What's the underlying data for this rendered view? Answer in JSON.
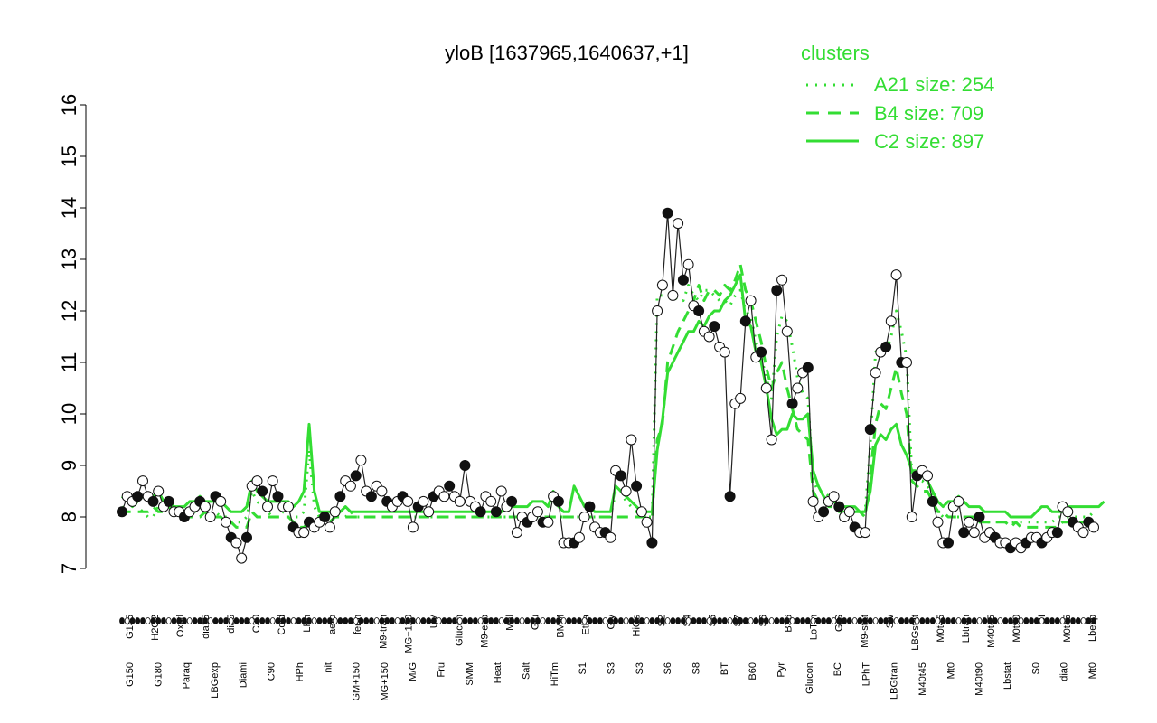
{
  "chart_data": {
    "type": "line",
    "title": "yloB [1637965,1640637,+1]",
    "xlabel": "",
    "ylabel": "",
    "ylim": [
      7,
      16
    ],
    "yticks": [
      7,
      8,
      9,
      10,
      11,
      12,
      13,
      14,
      15,
      16
    ],
    "grid": false,
    "legend_position": "top-right",
    "legend": {
      "title": "clusters",
      "color": "#33dd33",
      "entries": [
        {
          "label": "A21 size: 254",
          "style": "dotted"
        },
        {
          "label": "B4 size: 709",
          "style": "dashed"
        },
        {
          "label": "C2 size: 897",
          "style": "solid"
        }
      ]
    },
    "x_labels_top": [
      "G135",
      "H2O2",
      "Oxctl",
      "dia15",
      "dia5",
      "C30",
      "Cold",
      "LPh",
      "aero",
      "ferm",
      "M9-tran",
      "MG+120",
      "UV",
      "Glucon",
      "M9-exp",
      "Mal",
      "Glu",
      "BMM",
      "Etha",
      "Gly",
      "HiOs",
      "S2",
      "S4",
      "S5",
      "S7",
      "S6",
      "B36",
      "LoTm",
      "G/S",
      "M9-stat",
      "Sw",
      "LBGstat",
      "M0t45",
      "Lbtran",
      "M40t45",
      "M0t90",
      "BI",
      "M0t45",
      "Lbexp"
    ],
    "x_labels_bottom": [
      "G150",
      "G180",
      "Paraq",
      "LBGexp",
      "Diami",
      "C90",
      "HPh",
      "nit",
      "GM+150",
      "MG+150",
      "M/G",
      "Fru",
      "SMM",
      "Heat",
      "Salt",
      "HiTm",
      "S1",
      "S3",
      "S3",
      "S6",
      "S8",
      "BT",
      "B60",
      "Pyr",
      "Glucon",
      "BC",
      "LPhT",
      "LBGtran",
      "M40t45",
      "Mt0",
      "M40t90",
      "Lbstat",
      "S0",
      "dia0",
      "Mt0"
    ],
    "series": [
      {
        "values": [
          8.1,
          8.4,
          8.3,
          8.4,
          8.7,
          8.4,
          8.3,
          8.5,
          8.2,
          8.3,
          8.1,
          8.1,
          8.0,
          8.1,
          8.2,
          8.3,
          8.2,
          8.0,
          8.4,
          8.3,
          7.9,
          7.6,
          7.5,
          7.2,
          7.6,
          8.6,
          8.7,
          8.5,
          8.2,
          8.7,
          8.4,
          8.2,
          8.2,
          7.8,
          7.7,
          7.7,
          7.9,
          7.8,
          7.9,
          8.0,
          7.8,
          8.1,
          8.4,
          8.7,
          8.6,
          8.8,
          9.1,
          8.5,
          8.4,
          8.6,
          8.5,
          8.3,
          8.2,
          8.3,
          8.4,
          8.3,
          7.8,
          8.2,
          8.3,
          8.1,
          8.4,
          8.5,
          8.4,
          8.6,
          8.4,
          8.3,
          9.0,
          8.3,
          8.2,
          8.1,
          8.4,
          8.3,
          8.1,
          8.5,
          8.2,
          8.3,
          7.7,
          8.0,
          7.9,
          8.0,
          8.1,
          7.9,
          7.9,
          8.4,
          8.3,
          7.5,
          7.5,
          7.5,
          7.6,
          8.0,
          8.2,
          7.8,
          7.7,
          7.7,
          7.6,
          8.9,
          8.8,
          8.5,
          9.5,
          8.6,
          8.1,
          7.9,
          7.5,
          12.0,
          12.5,
          13.9,
          12.3,
          13.7,
          12.6,
          12.9,
          12.1,
          12.0,
          11.6,
          11.5,
          11.7,
          11.3,
          11.2,
          8.4,
          10.2,
          10.3,
          11.8,
          12.2,
          11.1,
          11.2,
          10.5,
          9.5,
          12.4,
          12.6,
          11.6,
          10.2,
          10.5,
          10.8,
          10.9,
          8.3,
          8.0,
          8.1,
          8.3,
          8.4,
          8.2,
          8.0,
          8.1,
          7.8,
          7.7,
          7.7,
          9.7,
          10.8,
          11.2,
          11.3,
          11.8,
          12.7,
          11.0,
          11.0,
          8.0,
          8.8,
          8.9,
          8.8,
          8.3,
          7.9,
          7.5,
          7.5,
          8.2,
          8.3,
          7.7,
          7.9,
          7.7,
          8.0,
          7.6,
          7.7,
          7.6,
          7.5,
          7.5,
          7.4,
          7.5,
          7.4,
          7.5,
          7.6,
          7.6,
          7.5,
          7.6,
          7.7,
          7.7,
          8.2,
          8.1,
          7.9,
          7.8,
          7.7,
          7.9,
          7.8
        ]
      },
      {
        "name": "A21 size: 254",
        "style": "dotted",
        "values": [
          8.4,
          8.3,
          8.3,
          8.2,
          8.1,
          8.0,
          8.0,
          8.2,
          8.3,
          8.2,
          8.1,
          8.1,
          8.0,
          8.0,
          8.1,
          8.2,
          8.1,
          8.0,
          8.1,
          8.0,
          8.0,
          7.9,
          7.9,
          7.9,
          8.0,
          8.5,
          8.3,
          8.2,
          8.1,
          8.0,
          8.0,
          8.1,
          8.0,
          8.0,
          8.0,
          8.1,
          9.3,
          8.2,
          8.0,
          7.9,
          7.9,
          8.0,
          8.0,
          8.0,
          8.1,
          8.0,
          8.0,
          8.0,
          8.0,
          8.0,
          8.0,
          8.0,
          8.0,
          8.0,
          8.0,
          8.0,
          8.0,
          8.0,
          8.0,
          8.0,
          8.0,
          8.0,
          8.0,
          8.0,
          8.0,
          8.0,
          8.0,
          8.0,
          8.0,
          8.0,
          8.0,
          8.0,
          8.0,
          8.0,
          8.0,
          8.0,
          8.0,
          8.0,
          8.0,
          8.0,
          8.0,
          8.0,
          8.0,
          8.0,
          8.0,
          8.0,
          8.0,
          8.0,
          8.0,
          8.0,
          8.0,
          8.0,
          8.0,
          8.0,
          8.0,
          8.5,
          8.5,
          8.3,
          8.2,
          8.1,
          8.1,
          8.0,
          8.0,
          12.3,
          12.3,
          12.3,
          12.3,
          12.2,
          12.2,
          12.5,
          12.3,
          12.2,
          12.4,
          12.4,
          12.3,
          12.2,
          12.2,
          12.1,
          12.3,
          12.4,
          12.0,
          11.9,
          11.4,
          11.1,
          10.7,
          10.3,
          11.5,
          11.9,
          11.8,
          11.3,
          10.7,
          10.4,
          10.3,
          8.7,
          8.5,
          8.5,
          8.4,
          8.3,
          8.1,
          8.2,
          8.1,
          8.1,
          8.1,
          8.1,
          9.4,
          11.2,
          11.3,
          11.2,
          11.5,
          12.0,
          11.6,
          11.1,
          8.8,
          8.7,
          8.7,
          8.6,
          8.4,
          8.1,
          8.0,
          8.0,
          8.0,
          8.0,
          8.0,
          8.0,
          8.0,
          7.9,
          7.9,
          7.9,
          7.9,
          7.9,
          7.9,
          7.9,
          7.9,
          7.9,
          7.9,
          7.9,
          7.9,
          7.9,
          7.9,
          7.9,
          8.0,
          8.0,
          8.0,
          8.0,
          8.0,
          8.0,
          8.0,
          8.1
        ]
      },
      {
        "name": "B4 size: 709",
        "style": "dashed",
        "values": [
          8.2,
          8.1,
          8.1,
          8.1,
          8.1,
          8.1,
          8.2,
          8.1,
          8.1,
          8.2,
          8.1,
          8.1,
          8.1,
          8.0,
          8.0,
          8.0,
          8.1,
          8.0,
          8.0,
          8.0,
          7.9,
          7.9,
          7.8,
          7.8,
          7.8,
          8.1,
          8.0,
          8.0,
          8.0,
          8.0,
          8.0,
          8.0,
          8.0,
          7.9,
          7.8,
          7.8,
          7.9,
          7.9,
          8.0,
          7.9,
          7.9,
          8.0,
          8.0,
          8.0,
          8.0,
          8.0,
          8.0,
          8.0,
          8.0,
          8.0,
          8.0,
          8.0,
          8.0,
          8.0,
          8.0,
          8.0,
          8.0,
          8.0,
          8.0,
          8.0,
          8.0,
          8.0,
          8.0,
          8.0,
          8.0,
          8.0,
          8.0,
          8.0,
          8.0,
          8.0,
          8.0,
          8.0,
          8.0,
          8.0,
          8.0,
          8.0,
          8.0,
          8.0,
          8.0,
          8.0,
          8.0,
          8.0,
          8.0,
          8.0,
          8.0,
          8.0,
          8.0,
          8.0,
          8.0,
          8.0,
          8.0,
          8.0,
          8.0,
          8.0,
          8.0,
          8.0,
          8.0,
          8.0,
          8.0,
          8.0,
          8.0,
          8.0,
          8.0,
          9.5,
          9.8,
          11.0,
          11.3,
          11.6,
          11.8,
          12.0,
          12.2,
          12.5,
          12.2,
          12.4,
          12.4,
          12.3,
          12.5,
          12.4,
          12.6,
          12.9,
          12.4,
          12.2,
          11.8,
          11.4,
          10.9,
          10.5,
          10.8,
          11.0,
          10.5,
          10.1,
          9.7,
          9.6,
          9.5,
          8.5,
          8.3,
          8.3,
          8.2,
          8.2,
          8.1,
          8.1,
          8.1,
          8.1,
          8.1,
          8.0,
          8.8,
          9.8,
          10.2,
          10.1,
          10.5,
          10.9,
          10.4,
          10.0,
          8.7,
          8.6,
          8.5,
          8.5,
          8.3,
          8.1,
          8.1,
          8.0,
          8.0,
          8.0,
          8.0,
          8.0,
          8.0,
          7.9,
          7.9,
          7.9,
          7.9,
          7.9,
          7.9,
          7.8,
          7.9,
          7.8,
          7.8,
          7.8,
          7.8,
          7.8,
          7.8,
          7.8,
          7.8,
          7.9,
          7.9,
          7.9,
          7.9,
          7.9,
          7.9,
          8.0
        ]
      },
      {
        "name": "C2 size: 897",
        "style": "solid",
        "values": [
          8.4,
          8.3,
          8.2,
          8.3,
          8.4,
          8.4,
          8.4,
          8.5,
          8.3,
          8.3,
          8.2,
          8.2,
          8.2,
          8.3,
          8.3,
          8.4,
          8.3,
          8.3,
          8.3,
          8.3,
          8.2,
          8.1,
          8.1,
          8.1,
          8.2,
          8.7,
          8.5,
          8.4,
          8.3,
          8.3,
          8.3,
          8.3,
          8.3,
          8.2,
          8.3,
          8.5,
          9.8,
          8.5,
          8.1,
          8.1,
          8.1,
          8.1,
          8.1,
          8.2,
          8.1,
          8.1,
          8.1,
          8.1,
          8.1,
          8.1,
          8.1,
          8.1,
          8.1,
          8.1,
          8.1,
          8.1,
          8.1,
          8.1,
          8.1,
          8.1,
          8.1,
          8.1,
          8.1,
          8.1,
          8.1,
          8.1,
          8.1,
          8.1,
          8.1,
          8.1,
          8.1,
          8.1,
          8.1,
          8.1,
          8.2,
          8.2,
          8.2,
          8.2,
          8.2,
          8.3,
          8.3,
          8.3,
          8.2,
          8.5,
          8.2,
          8.1,
          8.1,
          8.6,
          8.4,
          8.2,
          8.2,
          8.1,
          8.1,
          8.1,
          8.1,
          8.6,
          8.5,
          8.4,
          8.3,
          8.2,
          8.1,
          8.1,
          8.1,
          9.3,
          9.9,
          10.8,
          11.0,
          11.2,
          11.4,
          11.6,
          11.6,
          11.8,
          11.7,
          11.9,
          12.0,
          12.0,
          12.2,
          12.3,
          12.5,
          12.7,
          11.8,
          11.7,
          11.2,
          11.0,
          10.5,
          9.9,
          9.6,
          9.7,
          9.7,
          10.0,
          9.9,
          9.9,
          10.0,
          8.9,
          8.6,
          8.4,
          8.3,
          8.3,
          8.2,
          8.2,
          8.2,
          8.2,
          8.1,
          8.1,
          8.5,
          9.4,
          9.6,
          9.5,
          9.7,
          9.8,
          9.4,
          9.2,
          8.9,
          8.9,
          8.8,
          8.7,
          8.5,
          8.3,
          8.2,
          8.3,
          8.3,
          8.4,
          8.3,
          8.2,
          8.2,
          8.2,
          8.1,
          8.1,
          8.1,
          8.1,
          8.1,
          8.0,
          8.0,
          8.0,
          8.0,
          8.0,
          8.1,
          8.2,
          8.2,
          8.1,
          8.1,
          8.1,
          8.2,
          8.2,
          8.2,
          8.2,
          8.2,
          8.2,
          8.2,
          8.3
        ]
      }
    ]
  }
}
